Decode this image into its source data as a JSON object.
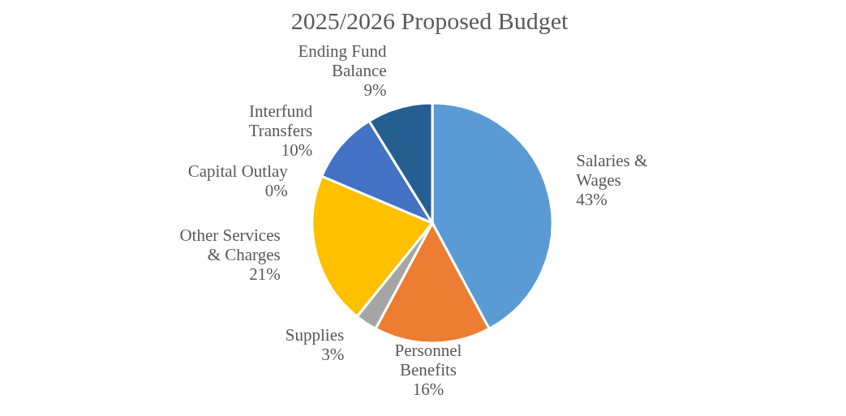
{
  "chart_data": {
    "type": "pie",
    "title": "2025/2026 Proposed Budget",
    "categories": [
      "Salaries & Wages",
      "Personnel Benefits",
      "Supplies",
      "Other Services & Charges",
      "Capital Outlay",
      "Interfund Transfers",
      "Ending Fund Balance"
    ],
    "values": [
      43,
      16,
      3,
      21,
      0,
      10,
      9
    ],
    "value_labels": [
      "43%",
      "16%",
      "3%",
      "21%",
      "0%",
      "10%",
      "9%"
    ],
    "colors": [
      "#5b9bd5",
      "#ed7d31",
      "#a5a5a5",
      "#ffc000",
      "#70ad47",
      "#4472c4",
      "#255e91"
    ],
    "legend": false
  }
}
